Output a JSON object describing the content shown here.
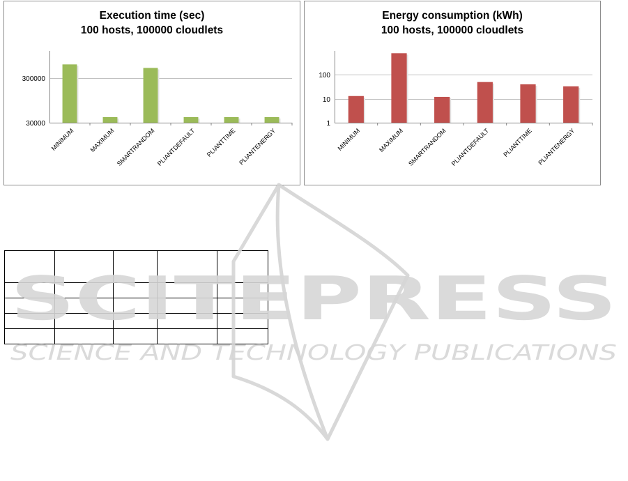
{
  "colors": {
    "left_bars": "#9bbb59",
    "right_bars": "#c0504d",
    "gridline": "#bfbfbf",
    "axis": "#868686",
    "frame": "#8c8c8c",
    "watermark": "#d9d9d9"
  },
  "watermark": {
    "line1": "SCITEPRESS",
    "line2": "SCIENCE AND TECHNOLOGY PUBLICATIONS"
  },
  "chart_data": [
    {
      "type": "bar",
      "title": "Execution time (sec)",
      "subtitle": "100 hosts, 100000 cloudlets",
      "xlabel": "",
      "ylabel": "",
      "scale": "log",
      "ylim": [
        30000,
        1200000
      ],
      "yticks": [
        30000,
        300000
      ],
      "ytick_labels": [
        "30000",
        "300000"
      ],
      "grid": true,
      "categories": [
        "MINIMUM",
        "MAXIMUM",
        "SMARTRANDOM",
        "PLIANTDEFAULT",
        "PLIANTTIME",
        "PLIANTENERGY"
      ],
      "values": [
        600000,
        40000,
        500000,
        40000,
        40000,
        40000
      ]
    },
    {
      "type": "bar",
      "title": "Energy consumption (kWh)",
      "subtitle": "100 hosts, 100000 cloudlets",
      "xlabel": "",
      "ylabel": "",
      "scale": "log",
      "ylim": [
        1,
        1000
      ],
      "yticks": [
        1,
        10,
        100
      ],
      "ytick_labels": [
        "1",
        "10",
        "100"
      ],
      "grid": true,
      "categories": [
        "MINIMUM",
        "MAXIMUM",
        "SMARTRANDOM",
        "PLIANTDEFAULT",
        "PLIANTTIME",
        "PLIANTENERGY"
      ],
      "values": [
        13,
        800,
        12,
        50,
        40,
        33
      ]
    }
  ]
}
